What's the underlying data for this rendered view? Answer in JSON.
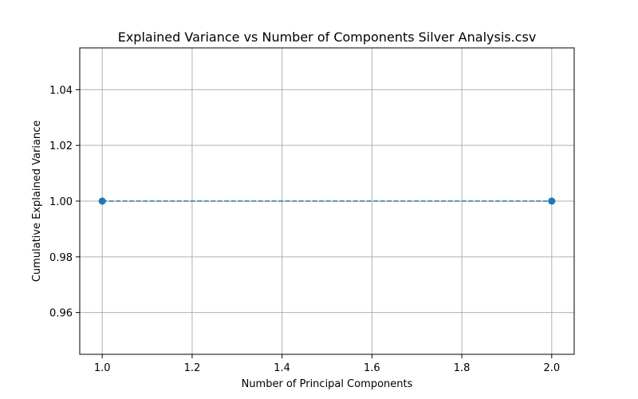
{
  "chart_data": {
    "type": "line",
    "title": "Explained Variance vs Number of Components Silver Analysis.csv",
    "xlabel": "Number of Principal Components",
    "ylabel": "Cumulative Explained Variance",
    "xlim": [
      0.95,
      2.05
    ],
    "ylim": [
      0.945,
      1.055
    ],
    "xticks": [
      1.0,
      1.2,
      1.4,
      1.6,
      1.8,
      2.0
    ],
    "xtick_labels": [
      "1.0",
      "1.2",
      "1.4",
      "1.6",
      "1.8",
      "2.0"
    ],
    "yticks": [
      0.96,
      0.98,
      1.0,
      1.02,
      1.04
    ],
    "ytick_labels": [
      "0.96",
      "0.98",
      "1.00",
      "1.02",
      "1.04"
    ],
    "grid": true,
    "series": [
      {
        "x": [
          1,
          2
        ],
        "y": [
          1.0,
          1.0
        ],
        "color": "#1f77b4",
        "linestyle": "dashed",
        "marker": "circle"
      }
    ]
  }
}
